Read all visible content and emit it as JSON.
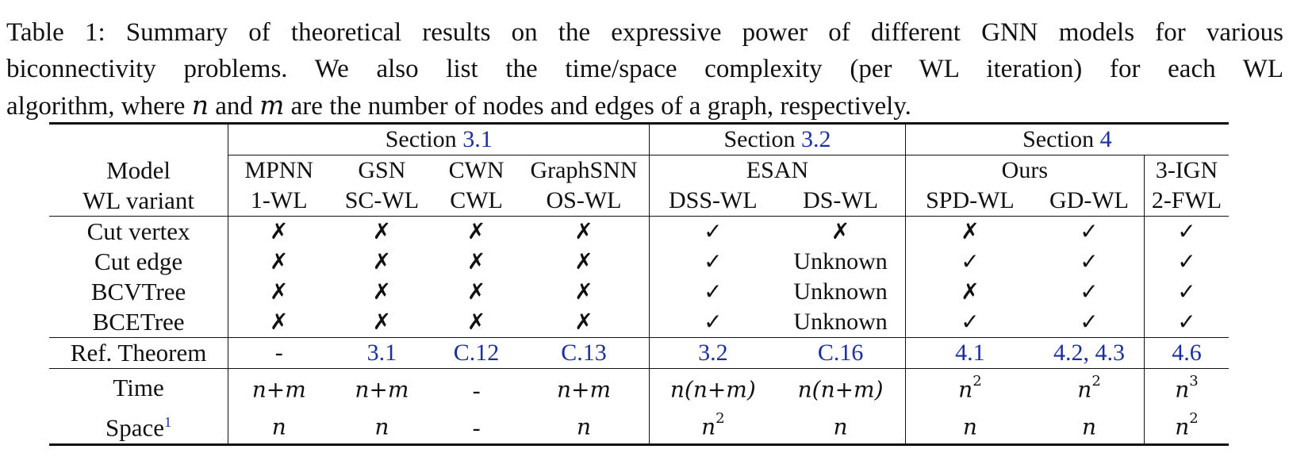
{
  "caption": {
    "line1": "Table 1: Summary of theoretical results on the expressive power of different GNN models for various",
    "line2": "biconnectivity problems.  We also list the time/space complexity (per WL iteration) for each WL",
    "line3_a": "algorithm, where ",
    "line3_n": "n",
    "line3_b": " and ",
    "line3_m": "m",
    "line3_c": " are the number of nodes and edges of a graph, respectively."
  },
  "table": {
    "sections": [
      {
        "prefix": "Section ",
        "ref": "3.1"
      },
      {
        "prefix": "Section ",
        "ref": "3.2"
      },
      {
        "prefix": "Section ",
        "ref": "4"
      }
    ],
    "model_label": "Model",
    "wl_label": "WL variant",
    "models": [
      "MPNN",
      "GSN",
      "CWN",
      "GraphSNN",
      "ESAN",
      "Ours",
      "3-IGN"
    ],
    "wl_variants": [
      "1-WL",
      "SC-WL",
      "CWL",
      "OS-WL",
      "DSS-WL",
      "DS-WL",
      "SPD-WL",
      "GD-WL",
      "2-FWL"
    ],
    "check": "✓",
    "cross": "✗",
    "problems": [
      {
        "label": "Cut vertex",
        "cells": [
          "✗",
          "✗",
          "✗",
          "✗",
          "✓",
          "✗",
          "✗",
          "✓",
          "✓"
        ]
      },
      {
        "label": "Cut edge",
        "cells": [
          "✗",
          "✗",
          "✗",
          "✗",
          "✓",
          "Unknown",
          "✓",
          "✓",
          "✓"
        ]
      },
      {
        "label": "BCVTree",
        "cells": [
          "✗",
          "✗",
          "✗",
          "✗",
          "✓",
          "Unknown",
          "✗",
          "✓",
          "✓"
        ]
      },
      {
        "label": "BCETree",
        "cells": [
          "✗",
          "✗",
          "✗",
          "✗",
          "✓",
          "Unknown",
          "✓",
          "✓",
          "✓"
        ]
      }
    ],
    "ref_label": "Ref. Theorem",
    "ref_cells": [
      "-",
      "3.1",
      "C.12",
      "C.13",
      "3.2",
      "C.16",
      "4.1",
      "4.2, 4.3",
      "4.6"
    ],
    "time_label": "Time",
    "time_cells": [
      "n+m",
      "n+m",
      "-",
      "n+m",
      "n(n+m)",
      "n(n+m)",
      "n",
      "n",
      "n"
    ],
    "time_sups": [
      "",
      "",
      "",
      "",
      "",
      "",
      "2",
      "2",
      "3"
    ],
    "space_label": "Space",
    "space_footnote": "1",
    "space_cells": [
      "n",
      "n",
      "-",
      "n",
      "n",
      "n",
      "n",
      "n",
      "n"
    ],
    "space_sups": [
      "",
      "",
      "",
      "",
      "2",
      "",
      "",
      "",
      "2"
    ]
  }
}
